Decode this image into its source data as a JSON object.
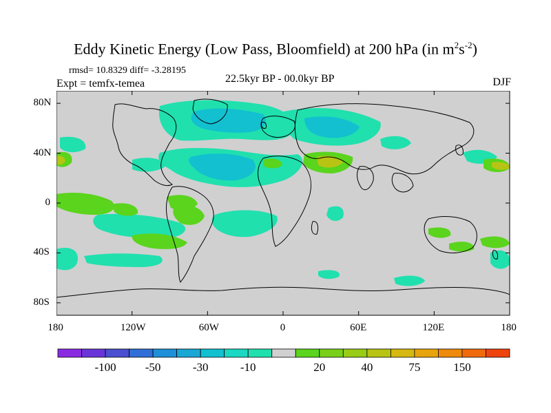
{
  "title": {
    "main": "Eddy Kinetic Energy (Low Pass, Bloomfield) at 200 hPa (in m",
    "sup1": "2",
    "mid": "s",
    "sup2": "-2",
    "end": ")"
  },
  "stats": "rmsd= 10.8329 diff= -3.28195",
  "expt": "Expt = temfx-temea",
  "period": "22.5kyr BP - 00.0kyr BP",
  "season": "DJF",
  "axes": {
    "y_ticks": [
      "80N",
      "40N",
      "0",
      "40S",
      "80S"
    ],
    "x_ticks": [
      "180",
      "120W",
      "60W",
      "0",
      "60E",
      "120E",
      "180"
    ]
  },
  "colorbar": {
    "colors": [
      "#8a2be2",
      "#6a35d8",
      "#4a50d0",
      "#2e6ed6",
      "#1e8fd8",
      "#1aa7d6",
      "#12c0d0",
      "#1ad8c2",
      "#20e0ae",
      "#d0d0d0",
      "#5ad41c",
      "#78d01a",
      "#98cc16",
      "#b8c414",
      "#d6b810",
      "#e8a40e",
      "#ee8a0c",
      "#f06a0c",
      "#f0440e"
    ],
    "labels": [
      "-100",
      "-50",
      "-30",
      "-10",
      "20",
      "40",
      "75",
      "150"
    ]
  },
  "palette": {
    "background": "#d0d0d0",
    "strong_negative": "#1aa7d6",
    "negative": "#12c0d0",
    "weak_negative": "#20e0ae",
    "positive": "#5ad41c",
    "strong_positive": "#b8c414"
  }
}
